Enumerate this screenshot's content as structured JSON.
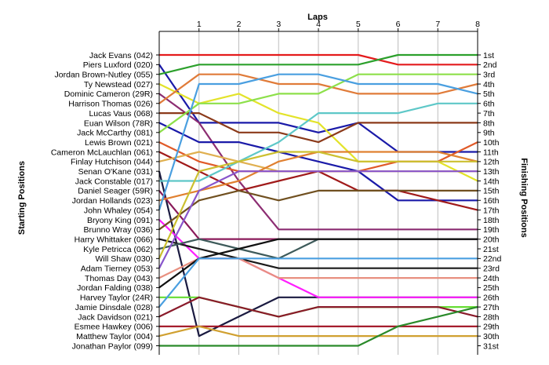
{
  "chart_data": {
    "type": "line",
    "title": "Laps",
    "ylabel": "Starting Positions",
    "ylabel2": "Finishing Positions",
    "x": [
      0,
      1,
      2,
      3,
      4,
      5,
      6,
      7,
      8
    ],
    "x_ticks": [
      1,
      2,
      3,
      4,
      5,
      6,
      7,
      8
    ],
    "y_range": [
      1,
      31
    ],
    "grid": "vertical",
    "starting_labels": [
      "Jack Evans (042)",
      "Piers Luxford (020)",
      "Jordan Brown-Nutley (055)",
      "Ty Newstead (027)",
      "Dominic Cameron (29R)",
      "Harrison Thomas (026)",
      "Lucas Vaus (068)",
      "Euan Wilson (78R)",
      "Jack McCarthy (081)",
      "Lewis Brown (021)",
      "Cameron McLauchlan (061)",
      "Finlay Hutchison (044)",
      "Senan O'Kane (031)",
      "Jack Constable (017)",
      "Daniel Seager (59R)",
      "Jordan Hollands (023)",
      "John Whaley (054)",
      "Bryony King (091)",
      "Brunno Wray (036)",
      "Harry Whittaker (066)",
      "Kyle Petricca (062)",
      "Will Shaw (030)",
      "Adam Tierney (053)",
      "Thomas Day (043)",
      "Jordan Falding (038)",
      "Harvey Taylor (24R)",
      "Jamie Dinsdale (028)",
      "Jack Davidson (021)",
      "Esmee Hawkey (006)",
      "Matthew Taylor (004)",
      "Jonathan Paylor (099)"
    ],
    "finishing_labels": [
      "1st",
      "2nd",
      "3rd",
      "4th",
      "5th",
      "6th",
      "7th",
      "8th",
      "9th",
      "10th",
      "11th",
      "12th",
      "13th",
      "14th",
      "15th",
      "16th",
      "17th",
      "18th",
      "19th",
      "20th",
      "21st",
      "22nd",
      "23rd",
      "24th",
      "25th",
      "26th",
      "27th",
      "28th",
      "29th",
      "30th",
      "31st"
    ],
    "series": [
      {
        "color": "#e41a1c",
        "values": [
          1,
          1,
          1,
          1,
          1,
          1,
          2,
          2,
          2
        ]
      },
      {
        "color": "#1a1aa8",
        "values": [
          2,
          8,
          8,
          8,
          9,
          8,
          11,
          11,
          11
        ]
      },
      {
        "color": "#2ca02c",
        "values": [
          3,
          2,
          2,
          2,
          2,
          2,
          1,
          1,
          1
        ]
      },
      {
        "color": "#e3e32a",
        "values": [
          4,
          6,
          5,
          7,
          8,
          12,
          12,
          12,
          14
        ]
      },
      {
        "color": "#8c2d72",
        "values": [
          5,
          8,
          14,
          19,
          19,
          19,
          19,
          19,
          19
        ]
      },
      {
        "color": "#e07b39",
        "values": [
          6,
          3,
          3,
          4,
          4,
          5,
          5,
          5,
          4
        ]
      },
      {
        "color": "#8b3a1a",
        "values": [
          7,
          7,
          9,
          9,
          10,
          8,
          8,
          8,
          8
        ]
      },
      {
        "color": "#1a1aa8",
        "values": [
          8,
          10,
          10,
          11,
          12,
          13,
          16,
          16,
          16
        ]
      },
      {
        "color": "#8de04a",
        "values": [
          9,
          6,
          6,
          5,
          5,
          3,
          3,
          3,
          3
        ]
      },
      {
        "color": "#e05a28",
        "values": [
          10,
          12,
          13,
          13,
          13,
          13,
          12,
          12,
          10
        ]
      },
      {
        "color": "#a01a1a",
        "values": [
          11,
          13,
          15,
          14,
          13,
          15,
          15,
          16,
          17
        ]
      },
      {
        "color": "#e0b050",
        "values": [
          12,
          11,
          12,
          13,
          13,
          13,
          13,
          13,
          13
        ]
      },
      {
        "color": "#1a1a40",
        "values": [
          13,
          30,
          28,
          26,
          26,
          26,
          26,
          26,
          26
        ]
      },
      {
        "color": "#5ec8c8",
        "values": [
          14,
          14,
          12,
          10,
          7,
          7,
          7,
          6,
          6
        ]
      },
      {
        "color": "#8a1a5a",
        "values": [
          15,
          20,
          20,
          20,
          20,
          20,
          20,
          20,
          20
        ]
      },
      {
        "color": "#e08030",
        "values": [
          16,
          15,
          14,
          12,
          11,
          11,
          11,
          11,
          12
        ]
      },
      {
        "color": "#4a9fe0",
        "values": [
          17,
          4,
          4,
          3,
          3,
          4,
          4,
          4,
          5
        ]
      },
      {
        "color": "#ff1fff",
        "values": [
          18,
          22,
          22,
          24,
          26,
          26,
          26,
          26,
          26
        ]
      },
      {
        "color": "#705020",
        "values": [
          19,
          16,
          15,
          16,
          15,
          15,
          15,
          15,
          15
        ]
      },
      {
        "color": "#1a1a1a",
        "values": [
          20,
          21,
          22,
          23,
          23,
          23,
          23,
          23,
          23
        ]
      },
      {
        "color": "#3d5a5a",
        "values": [
          21,
          20,
          21,
          22,
          20,
          20,
          20,
          20,
          20
        ]
      },
      {
        "color": "#ccc030",
        "values": [
          22,
          13,
          12,
          11,
          11,
          12,
          12,
          12,
          12
        ]
      },
      {
        "color": "#8855cc",
        "values": [
          23,
          15,
          13,
          13,
          13,
          13,
          13,
          13,
          13
        ]
      },
      {
        "color": "#e89080",
        "values": [
          24,
          22,
          22,
          24,
          24,
          24,
          24,
          24,
          24
        ]
      },
      {
        "color": "#101010",
        "values": [
          25,
          22,
          21,
          20,
          20,
          20,
          20,
          20,
          20
        ]
      },
      {
        "color": "#66dd33",
        "values": [
          26,
          26,
          27,
          28,
          27,
          27,
          27,
          27,
          27
        ]
      },
      {
        "color": "#4a9fe0",
        "values": [
          27,
          22,
          22,
          22,
          22,
          22,
          22,
          22,
          22
        ]
      },
      {
        "color": "#8a1a2a",
        "values": [
          28,
          26,
          27,
          28,
          27,
          27,
          27,
          27,
          28
        ]
      },
      {
        "color": "#a01020",
        "values": [
          29,
          29,
          29,
          29,
          29,
          29,
          29,
          29,
          29
        ]
      },
      {
        "color": "#d0a030",
        "values": [
          30,
          29,
          30,
          30,
          30,
          30,
          30,
          30,
          30
        ]
      },
      {
        "color": "#2a8a2a",
        "values": [
          31,
          31,
          31,
          31,
          31,
          31,
          29,
          28,
          27
        ]
      }
    ]
  }
}
